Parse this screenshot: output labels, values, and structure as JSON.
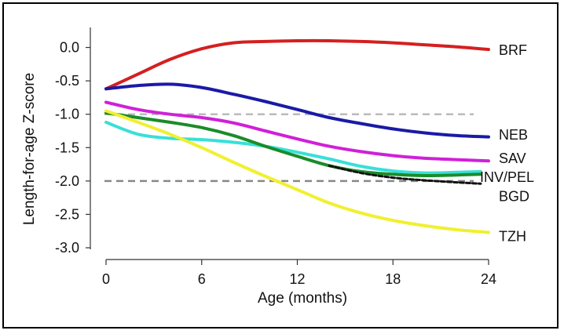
{
  "chart_data": {
    "type": "line",
    "xlabel": "Age (months)",
    "ylabel": "Length-for-age Z-score",
    "xlim": [
      0,
      24
    ],
    "ylim": [
      -3.0,
      0.3
    ],
    "xticks": [
      0,
      6,
      12,
      18,
      24
    ],
    "xtick_labels": [
      "0",
      "6",
      "12",
      "18",
      "24"
    ],
    "yticks": [
      0.0,
      -0.5,
      -1.0,
      -1.5,
      -2.0,
      -2.5,
      -3.0
    ],
    "ytick_labels": [
      "0.0",
      "-0.5",
      "-1.0",
      "-1.5",
      "-2.0",
      "-2.5",
      "-3.0"
    ],
    "reference_lines": [
      {
        "y": -1.0,
        "style": "dashed",
        "color": "#bbbbbb"
      },
      {
        "y": -2.0,
        "style": "dashed",
        "color": "#888888"
      }
    ],
    "series": [
      {
        "name": "BRF",
        "color": "#d42020",
        "x": [
          0,
          2,
          4,
          6,
          8,
          10,
          12,
          14,
          16,
          18,
          20,
          22,
          24
        ],
        "y": [
          -0.62,
          -0.4,
          -0.18,
          -0.02,
          0.07,
          0.09,
          0.1,
          0.1,
          0.09,
          0.07,
          0.04,
          0.01,
          -0.03
        ]
      },
      {
        "name": "NEB",
        "color": "#1a1aa8",
        "x": [
          0,
          2,
          4,
          6,
          8,
          10,
          12,
          14,
          16,
          18,
          20,
          22,
          24
        ],
        "y": [
          -0.62,
          -0.57,
          -0.55,
          -0.6,
          -0.7,
          -0.81,
          -0.93,
          -1.05,
          -1.14,
          -1.22,
          -1.28,
          -1.32,
          -1.34
        ]
      },
      {
        "name": "SAV",
        "color": "#d020d8",
        "x": [
          0,
          2,
          4,
          6,
          8,
          10,
          12,
          14,
          16,
          18,
          20,
          22,
          24
        ],
        "y": [
          -0.82,
          -0.93,
          -1.0,
          -1.05,
          -1.13,
          -1.25,
          -1.37,
          -1.48,
          -1.56,
          -1.62,
          -1.66,
          -1.68,
          -1.7
        ]
      },
      {
        "name": "INV/PEL",
        "color": "#38e0d8",
        "x": [
          0,
          2,
          4,
          6,
          8,
          10,
          12,
          14,
          16,
          18,
          20,
          22,
          23.5
        ],
        "y": [
          -1.12,
          -1.3,
          -1.36,
          -1.38,
          -1.42,
          -1.48,
          -1.57,
          -1.67,
          -1.78,
          -1.85,
          -1.88,
          -1.87,
          -1.86
        ]
      },
      {
        "name": "BGD",
        "color": "#1a8c2a",
        "x": [
          0,
          2,
          4,
          6,
          8,
          10,
          12,
          14,
          16,
          18,
          20,
          22,
          23.5
        ],
        "y": [
          -0.98,
          -1.05,
          -1.12,
          -1.2,
          -1.32,
          -1.48,
          -1.63,
          -1.77,
          -1.86,
          -1.9,
          -1.92,
          -1.91,
          -1.9
        ]
      },
      {
        "name": "TZH",
        "color": "#f0f030",
        "x": [
          0,
          2,
          4,
          6,
          8,
          10,
          12,
          14,
          16,
          18,
          20,
          22,
          24
        ],
        "y": [
          -0.95,
          -1.12,
          -1.3,
          -1.5,
          -1.72,
          -1.93,
          -2.13,
          -2.33,
          -2.48,
          -2.59,
          -2.67,
          -2.73,
          -2.77
        ]
      },
      {
        "color": "#111111",
        "style": "dashed",
        "x": [
          14,
          16,
          18,
          20,
          22,
          23.5
        ],
        "y": [
          -1.77,
          -1.88,
          -1.95,
          -1.99,
          -2.02,
          -2.04
        ]
      }
    ],
    "series_labels": [
      {
        "text": "BRF",
        "y": -0.03
      },
      {
        "text": "NEB",
        "y": -1.3
      },
      {
        "text": "SAV",
        "y": -1.65
      },
      {
        "text": "INV/PEL",
        "y": -1.93
      },
      {
        "text": "BGD",
        "y": -2.22
      },
      {
        "text": "TZH",
        "y": -2.82
      }
    ]
  }
}
